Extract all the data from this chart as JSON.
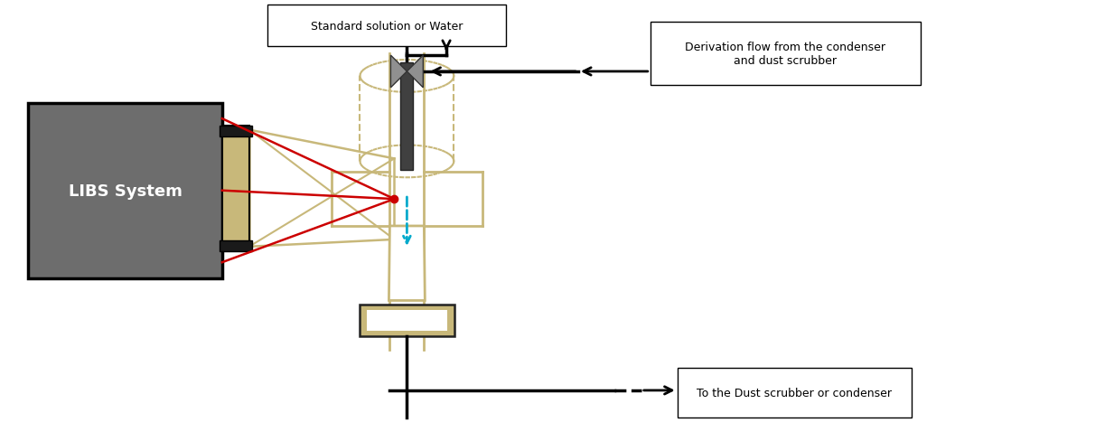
{
  "fig_width": 12.33,
  "fig_height": 4.89,
  "bg_color": "#ffffff",
  "cell_color": "#c8b87a",
  "red_color": "#cc0000",
  "blue_color": "#00aacc",
  "valve_color": "#909090",
  "label_std": "Standard solution or Water",
  "label_derive": "Derivation flow from the condenser\nand dust scrubber",
  "label_dust": "To the Dust scrubber or condenser",
  "libs_text": "LIBS System",
  "fontsize_label": 9,
  "fontsize_libs": 13
}
